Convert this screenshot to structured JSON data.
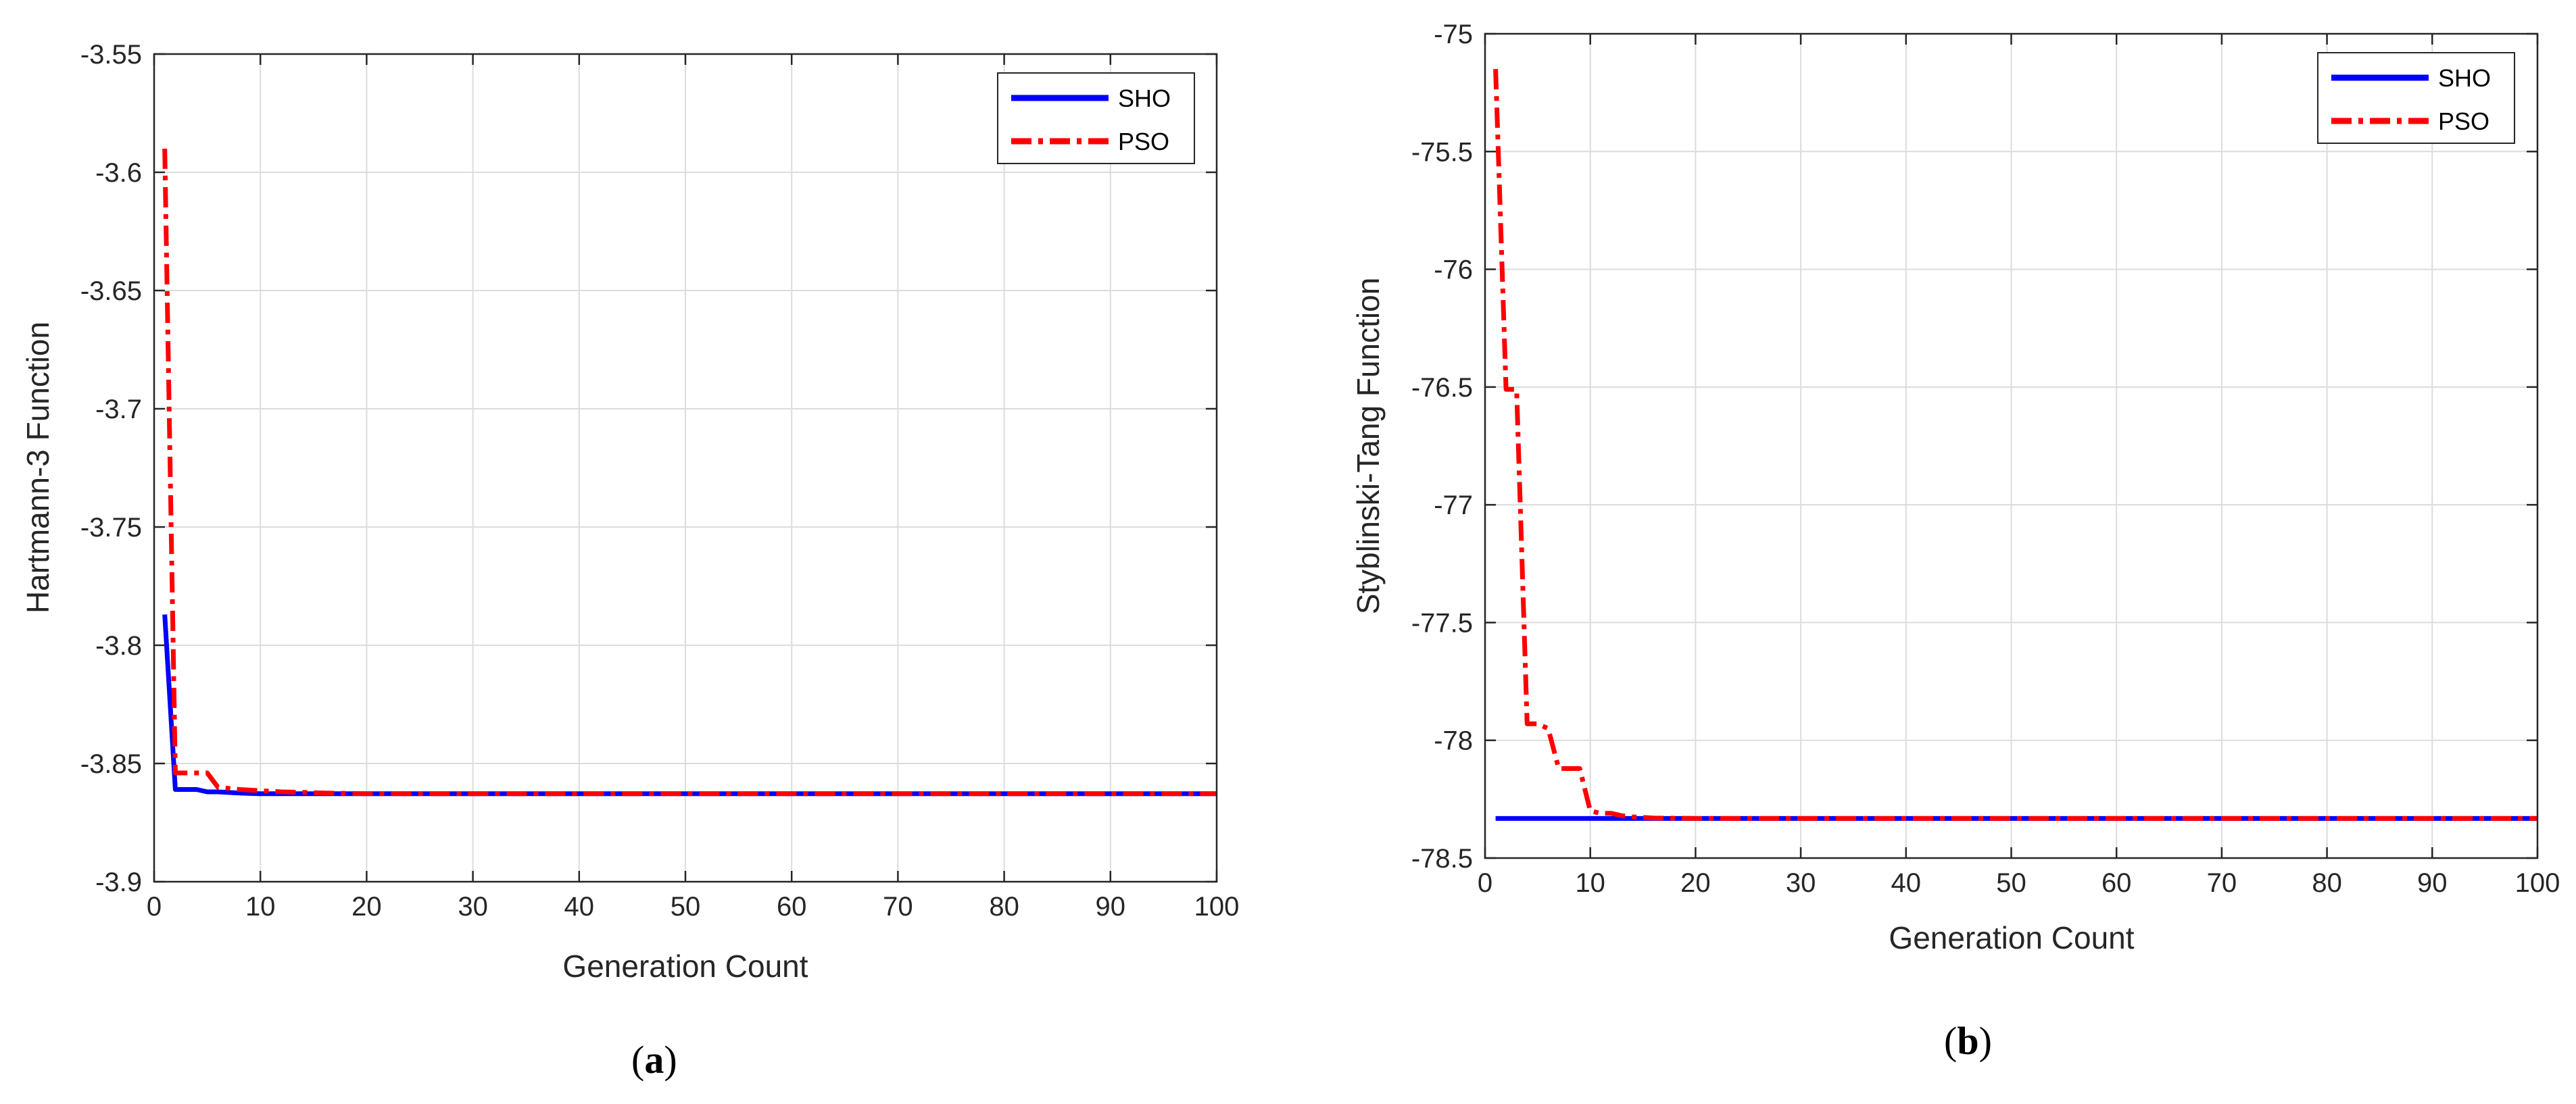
{
  "colors": {
    "sho": "#0000ff",
    "pso": "#ff0000",
    "grid": "#dcdcdc",
    "axis": "#262626"
  },
  "chart_data": [
    {
      "type": "line",
      "caption_open": "(",
      "caption_letter": "a",
      "caption_close": ")",
      "xlabel": "Generation Count",
      "ylabel": "Hartmann-3 Function",
      "xlim": [
        0,
        100
      ],
      "ylim": [
        -3.9,
        -3.55
      ],
      "xticks": [
        0,
        10,
        20,
        30,
        40,
        50,
        60,
        70,
        80,
        90,
        100
      ],
      "xtick_labels": [
        "0",
        "10",
        "20",
        "30",
        "40",
        "50",
        "60",
        "70",
        "80",
        "90",
        "100"
      ],
      "yticks": [
        -3.9,
        -3.85,
        -3.8,
        -3.75,
        -3.7,
        -3.65,
        -3.6,
        -3.55
      ],
      "ytick_labels": [
        "-3.9",
        "-3.85",
        "-3.8",
        "-3.75",
        "-3.7",
        "-3.65",
        "-3.6",
        "-3.55"
      ],
      "grid": true,
      "legend_position": "top-right",
      "series": [
        {
          "name": "SHO",
          "style": "solid",
          "color": "#0000ff",
          "x": [
            1,
            2,
            3,
            4,
            5,
            6,
            8,
            10,
            100
          ],
          "y": [
            -3.787,
            -3.861,
            -3.861,
            -3.861,
            -3.862,
            -3.862,
            -3.8625,
            -3.8628,
            -3.8628
          ]
        },
        {
          "name": "PSO",
          "style": "dashdot",
          "color": "#ff0000",
          "x": [
            1,
            2,
            3,
            4,
            5,
            6,
            7,
            8,
            10,
            12,
            14,
            16,
            20,
            100
          ],
          "y": [
            -3.59,
            -3.854,
            -3.854,
            -3.854,
            -3.854,
            -3.86,
            -3.8605,
            -3.861,
            -3.8615,
            -3.862,
            -3.8622,
            -3.8625,
            -3.8628,
            -3.8628
          ]
        }
      ]
    },
    {
      "type": "line",
      "caption_open": "(",
      "caption_letter": "b",
      "caption_close": ")",
      "xlabel": "Generation Count",
      "ylabel": "Styblinski-Tang Function",
      "xlim": [
        0,
        100
      ],
      "ylim": [
        -78.5,
        -75
      ],
      "xticks": [
        0,
        10,
        20,
        30,
        40,
        50,
        60,
        70,
        80,
        90,
        100
      ],
      "xtick_labels": [
        "0",
        "10",
        "20",
        "30",
        "40",
        "50",
        "60",
        "70",
        "80",
        "90",
        "100"
      ],
      "yticks": [
        -78.5,
        -78,
        -77.5,
        -77,
        -76.5,
        -76,
        -75.5,
        -75
      ],
      "ytick_labels": [
        "-78.5",
        "-78",
        "-77.5",
        "-77",
        "-76.5",
        "-76",
        "-75.5",
        "-75"
      ],
      "grid": true,
      "legend_position": "top-right",
      "series": [
        {
          "name": "SHO",
          "style": "solid",
          "color": "#0000ff",
          "x": [
            1,
            100
          ],
          "y": [
            -78.332,
            -78.332
          ]
        },
        {
          "name": "PSO",
          "style": "dashdot",
          "color": "#ff0000",
          "x": [
            1,
            2,
            3,
            4,
            5,
            6,
            7,
            8,
            9,
            10,
            11,
            12,
            13,
            14,
            16,
            20,
            100
          ],
          "y": [
            -75.15,
            -76.51,
            -76.51,
            -77.93,
            -77.93,
            -77.95,
            -78.12,
            -78.12,
            -78.12,
            -78.3,
            -78.31,
            -78.31,
            -78.32,
            -78.325,
            -78.33,
            -78.332,
            -78.332
          ]
        }
      ]
    }
  ]
}
